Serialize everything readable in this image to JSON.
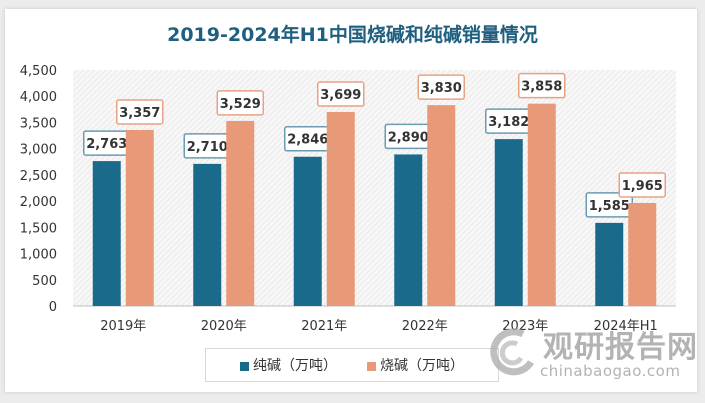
{
  "chart_data": {
    "type": "bar",
    "title": "2019-2024年H1中国烧碱和纯碱销量情况",
    "categories": [
      "2019年",
      "2020年",
      "2021年",
      "2022年",
      "2023年",
      "2024年H1"
    ],
    "series": [
      {
        "name": "纯碱（万吨）",
        "color": "#1a6a8c",
        "values": [
          2763,
          2710,
          2846,
          2890,
          3182,
          1585
        ]
      },
      {
        "name": "烧碱（万吨）",
        "color": "#e89a78",
        "values": [
          3357,
          3529,
          3699,
          3830,
          3858,
          1965
        ]
      }
    ],
    "ylim": [
      0,
      4500
    ],
    "yticks": [
      0,
      500,
      1000,
      1500,
      2000,
      2500,
      3000,
      3500,
      4000,
      4500
    ],
    "ytick_labels": [
      "0",
      "500",
      "1,000",
      "1,500",
      "2,000",
      "2,500",
      "3,000",
      "3,500",
      "4,000",
      "4,500"
    ],
    "legend": "bottom",
    "grid": false,
    "data_labels": true
  },
  "watermark": {
    "cn": "观研报告网",
    "en": "chinabaogao.com"
  }
}
